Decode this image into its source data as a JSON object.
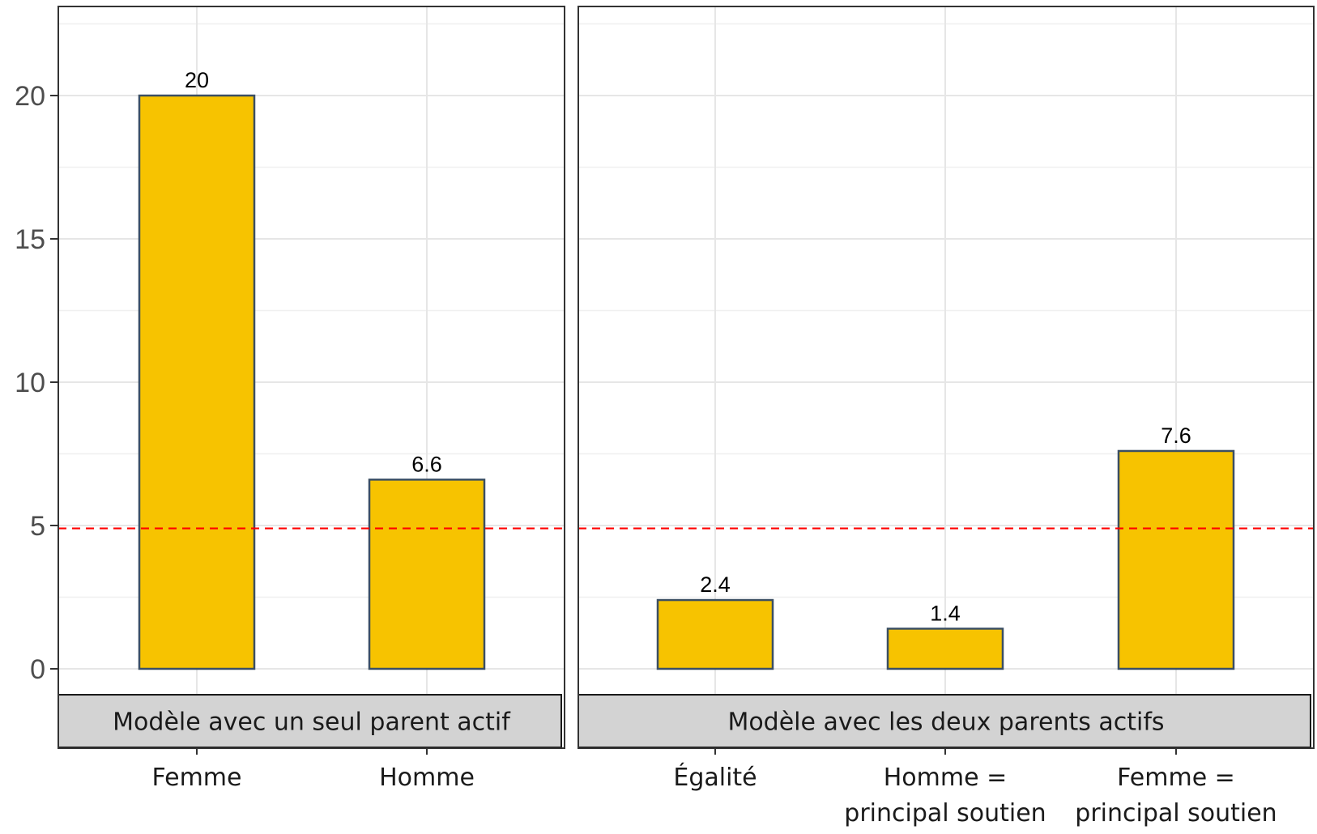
{
  "chart_data": {
    "type": "bar",
    "ylim": [
      -3,
      23
    ],
    "yticks": [
      "0",
      "5",
      "10",
      "15",
      "20"
    ],
    "yticks_values": [
      0,
      5,
      10,
      15,
      20
    ],
    "reference_line": {
      "value": 4.9,
      "color": "#ff0000",
      "style": "dashed"
    },
    "bar_fill": "#f7c300",
    "bar_stroke": "#3b4f63",
    "grid": true,
    "panels": [
      {
        "strip": "Modèle avec un seul parent actif",
        "categories": [
          "Femme",
          "Homme"
        ],
        "category_lines": [
          [
            "Femme"
          ],
          [
            "Homme"
          ]
        ],
        "values": [
          20,
          6.6
        ],
        "labels": [
          "20",
          "6.6"
        ]
      },
      {
        "strip": "Modèle avec les deux parents actifs",
        "categories": [
          "Égalité",
          "Homme = principal soutien",
          "Femme  = principal soutien"
        ],
        "category_lines": [
          [
            "Égalité"
          ],
          [
            "Homme =",
            "principal soutien"
          ],
          [
            "Femme  =",
            "principal soutien"
          ]
        ],
        "values": [
          2.4,
          1.4,
          7.6
        ],
        "labels": [
          "2.4",
          "1.4",
          "7.6"
        ]
      }
    ]
  }
}
